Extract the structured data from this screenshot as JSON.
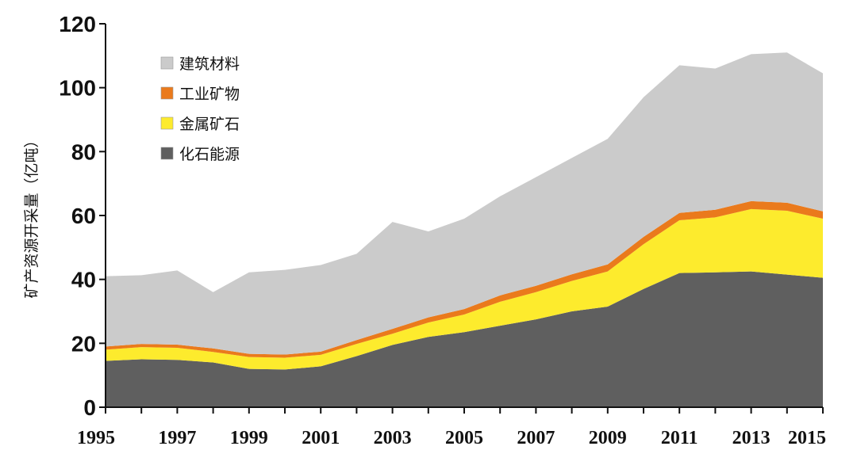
{
  "chart_data": {
    "type": "area",
    "stacked": true,
    "title": "",
    "xlabel": "",
    "ylabel": "矿产资源开采量（亿吨）",
    "ylim": [
      0,
      120
    ],
    "yticks": [
      "0",
      "20",
      "40",
      "60",
      "80",
      "100",
      "120"
    ],
    "xtick_labels": [
      "1995",
      "1997",
      "1999",
      "2001",
      "2003",
      "2005",
      "2007",
      "2009",
      "2011",
      "2013",
      "2015"
    ],
    "x": [
      1995,
      1996,
      1997,
      1998,
      1999,
      2000,
      2001,
      2002,
      2003,
      2004,
      2005,
      2006,
      2007,
      2008,
      2009,
      2010,
      2011,
      2012,
      2013,
      2014,
      2015
    ],
    "legend_position": "top-left",
    "grid": false,
    "series": [
      {
        "name": "化石能源",
        "color": "#5f5f5f",
        "values": [
          14.5,
          15,
          14.8,
          14,
          12,
          11.8,
          12.8,
          16,
          19.5,
          22,
          23.5,
          25.5,
          27.5,
          30,
          31.5,
          37,
          42,
          42.2,
          42.5,
          41.5,
          40.5
        ]
      },
      {
        "name": "金属矿石",
        "color": "#fdeb2d",
        "values": [
          3.5,
          3.8,
          3.8,
          3.3,
          3.7,
          3.7,
          3.6,
          3.8,
          3.5,
          4.5,
          5.5,
          7.5,
          8.5,
          9.5,
          11,
          14,
          16.5,
          17.2,
          19.5,
          20,
          18.5
        ]
      },
      {
        "name": "工业矿物",
        "color": "#ea7a1c",
        "values": [
          1.0,
          1.0,
          1.0,
          1.1,
          1.0,
          1.0,
          1.0,
          1.2,
          1.5,
          1.6,
          1.7,
          2.0,
          2.0,
          2.1,
          2.2,
          2.3,
          2.3,
          2.4,
          2.5,
          2.5,
          2.3
        ]
      },
      {
        "name": "建筑材料",
        "color": "#cbcbcb",
        "values": [
          22,
          21.5,
          23.2,
          17.6,
          25.5,
          26.5,
          27.1,
          27,
          33.5,
          26.9,
          28.3,
          31,
          34,
          36.4,
          39.3,
          43.7,
          46.2,
          44.2,
          46,
          47,
          43.2
        ]
      }
    ],
    "legend": [
      {
        "label": "建筑材料",
        "color": "#cbcbcb"
      },
      {
        "label": "工业矿物",
        "color": "#ea7a1c"
      },
      {
        "label": "金属矿石",
        "color": "#fdeb2d"
      },
      {
        "label": "化石能源",
        "color": "#5f5f5f"
      }
    ]
  }
}
